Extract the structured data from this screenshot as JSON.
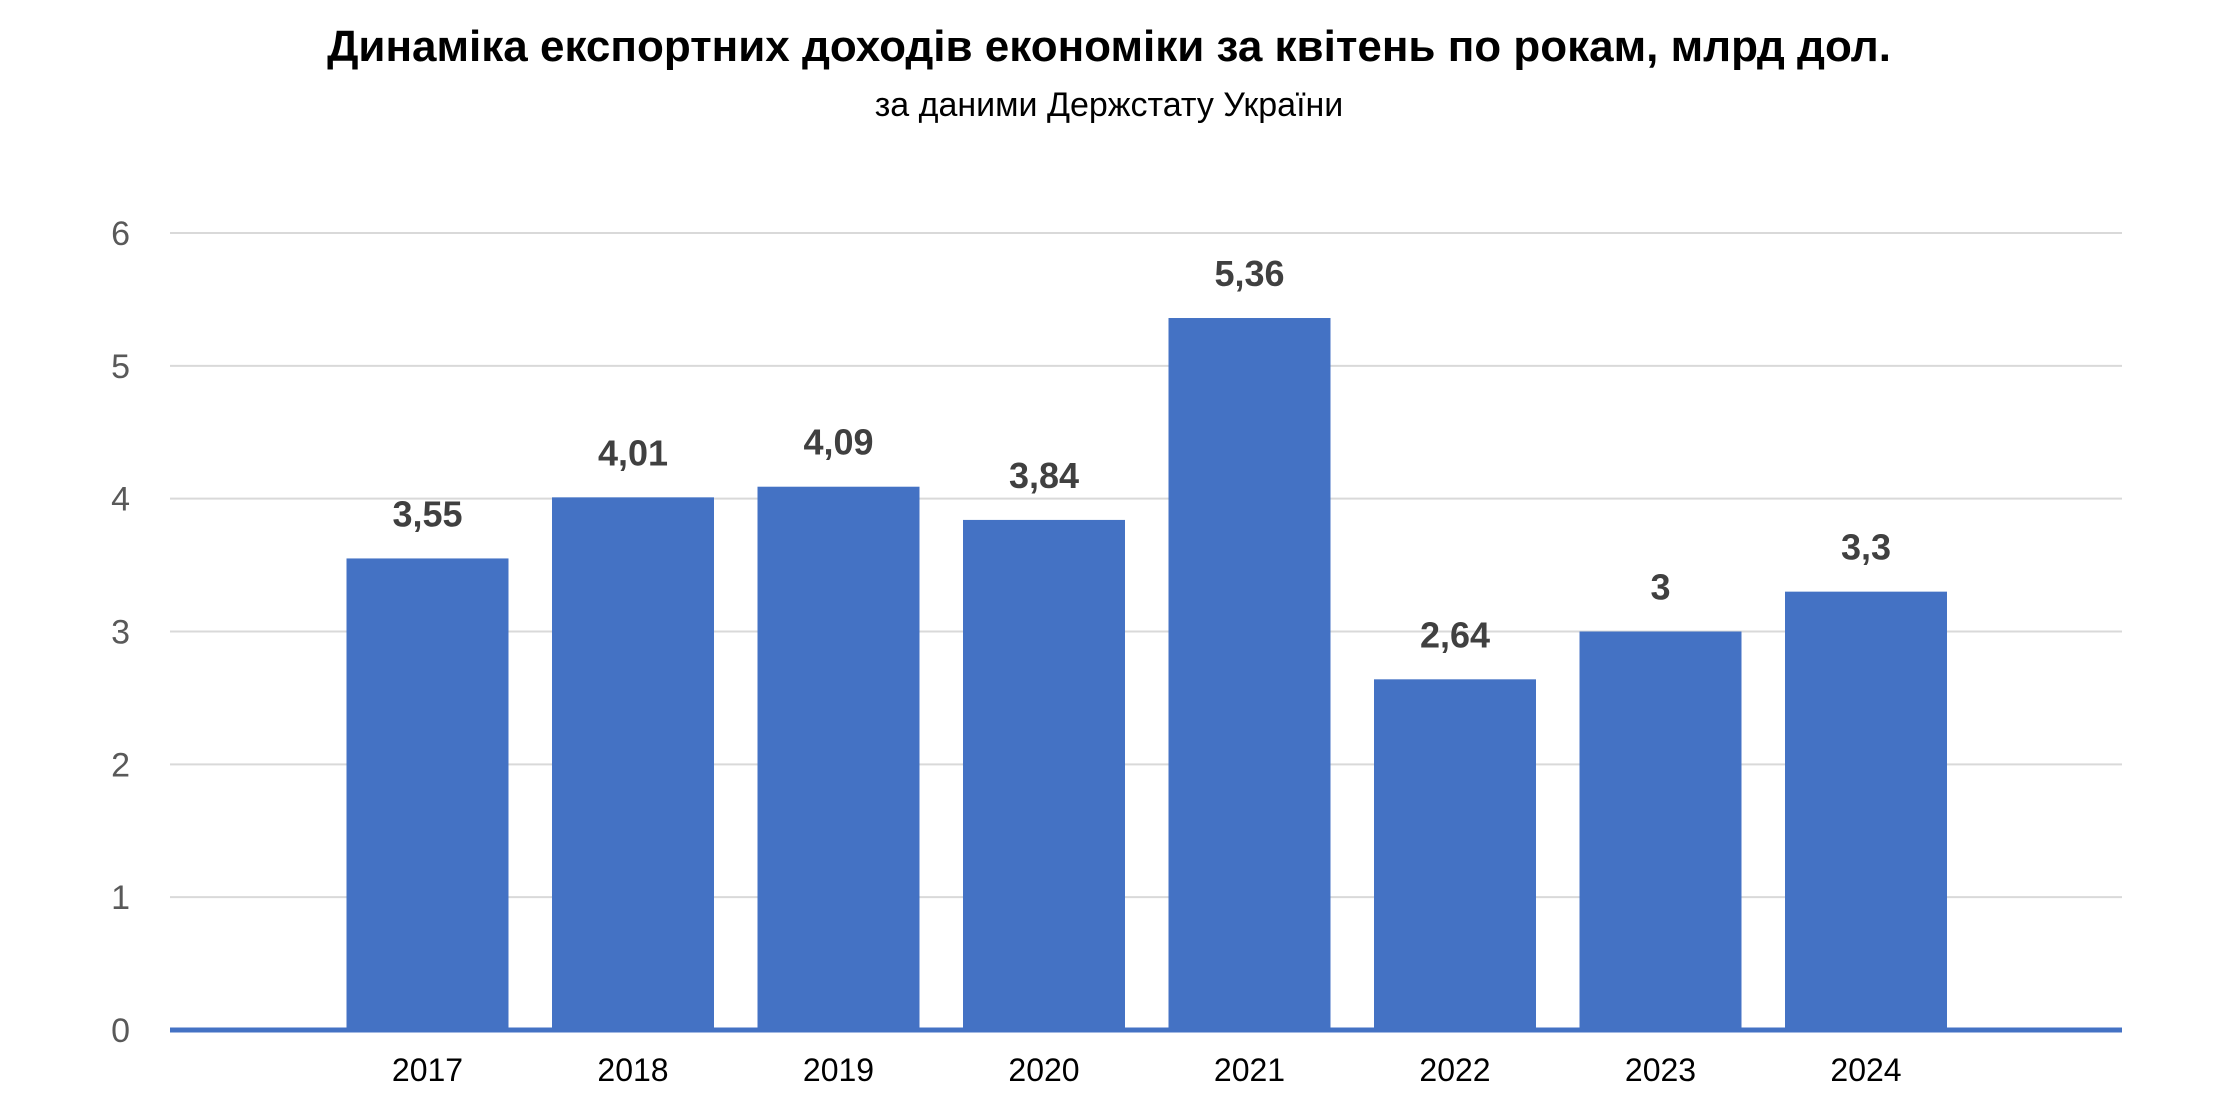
{
  "chart_data": {
    "type": "bar",
    "title": "Динаміка експортних доходів економіки за квітень по рокам, млрд дол.",
    "subtitle": "за даними Держстату України",
    "categories": [
      "2017",
      "2018",
      "2019",
      "2020",
      "2021",
      "2022",
      "2023",
      "2024"
    ],
    "values": [
      3.55,
      4.01,
      4.09,
      3.84,
      5.36,
      2.64,
      3,
      3.3
    ],
    "data_labels": [
      "3,55",
      "4,01",
      "4,09",
      "3,84",
      "5,36",
      "2,64",
      "3",
      "3,3"
    ],
    "xlabel": "",
    "ylabel": "",
    "ylim": [
      0,
      6
    ],
    "yticks": [
      "0",
      "1",
      "2",
      "3",
      "4",
      "5",
      "6"
    ],
    "grid": true,
    "legend": "none",
    "colors": {
      "bar": "#4472C4",
      "axis_line": "#4472C4",
      "gridline": "#D9D9D9",
      "tick_text": "#595959",
      "data_label_text": "#404040"
    }
  }
}
